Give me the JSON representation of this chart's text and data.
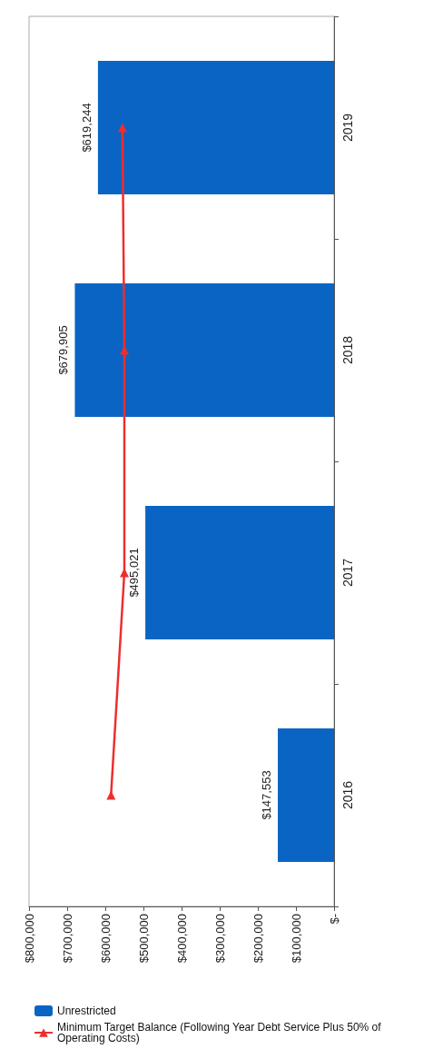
{
  "chart_data": {
    "type": "bar",
    "orientation": "horizontal",
    "categories": [
      "2019",
      "2018",
      "2017",
      "2016"
    ],
    "series": [
      {
        "name": "Unrestricted",
        "color": "#0a64c4",
        "values": [
          619244,
          679905,
          495021,
          147553
        ],
        "value_labels": [
          "$619,244",
          "$679,905",
          "$495,021",
          "$147,553"
        ]
      },
      {
        "name": "Minimum Target Balance (Following Year Debt Service Plus 50% of Operating Costs)",
        "type": "line",
        "color": "#ee2e2e",
        "values": [
          555000,
          550000,
          550000,
          585000
        ],
        "marker": "triangle"
      }
    ],
    "xlim": [
      800000,
      0
    ],
    "xticks": [
      {
        "value": 800000,
        "label": "$800,000"
      },
      {
        "value": 700000,
        "label": "$700,000"
      },
      {
        "value": 600000,
        "label": "$600,000"
      },
      {
        "value": 500000,
        "label": "$500,000"
      },
      {
        "value": 400000,
        "label": "$400,000"
      },
      {
        "value": 300000,
        "label": "$300,000"
      },
      {
        "value": 200000,
        "label": "$200,000"
      },
      {
        "value": 100000,
        "label": "$100,000"
      },
      {
        "value": 0,
        "label": "$-"
      }
    ],
    "grid": false,
    "legend": "bottom"
  }
}
